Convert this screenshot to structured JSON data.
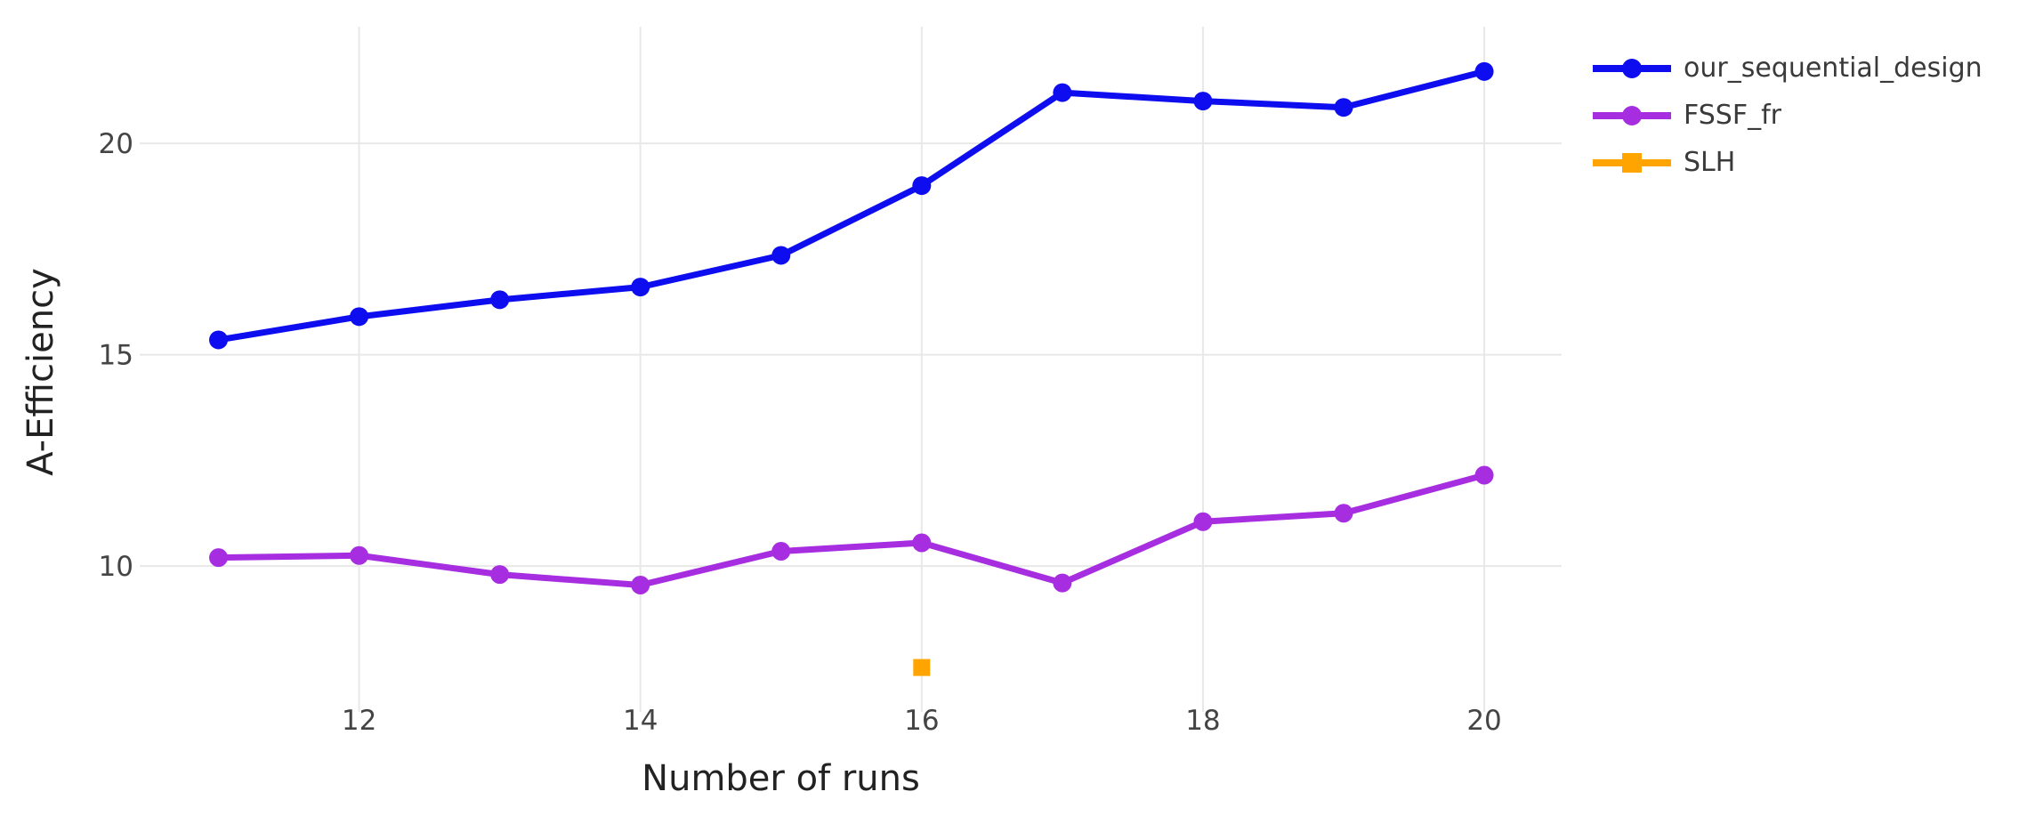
{
  "figure": {
    "background": "#ffffff"
  },
  "chart_data": {
    "type": "line",
    "title": "",
    "xlabel": "Number of runs",
    "ylabel": "A-Efficiency",
    "x": [
      11,
      12,
      13,
      14,
      15,
      16,
      17,
      18,
      19,
      20
    ],
    "series": [
      {
        "name": "our_sequential_design",
        "color": "#0d0df0",
        "marker": "circle",
        "values": [
          15.35,
          15.9,
          16.3,
          16.6,
          17.35,
          19.0,
          21.2,
          21.0,
          20.85,
          21.7
        ]
      },
      {
        "name": "FSSF_fr",
        "color": "#a62ee0",
        "marker": "circle",
        "values": [
          10.2,
          10.25,
          9.8,
          9.55,
          10.35,
          10.55,
          9.6,
          11.05,
          11.25,
          12.15
        ]
      },
      {
        "name": "SLH",
        "color": "#ffa400",
        "marker": "square",
        "values": [
          null,
          null,
          null,
          null,
          null,
          7.6,
          null,
          null,
          null,
          null
        ]
      }
    ],
    "x_ticks": [
      12,
      14,
      16,
      18,
      20
    ],
    "y_ticks": [
      10,
      15,
      20
    ],
    "xlim": [
      10.44,
      20.55
    ],
    "ylim": [
      6.55,
      22.76
    ],
    "grid": true,
    "legend_position": "top-right-outside",
    "colors": {
      "grid": "#e8e8e8",
      "tick_label": "#444444",
      "axis_title": "#222222",
      "legend_text": "#3a3a3a"
    }
  }
}
